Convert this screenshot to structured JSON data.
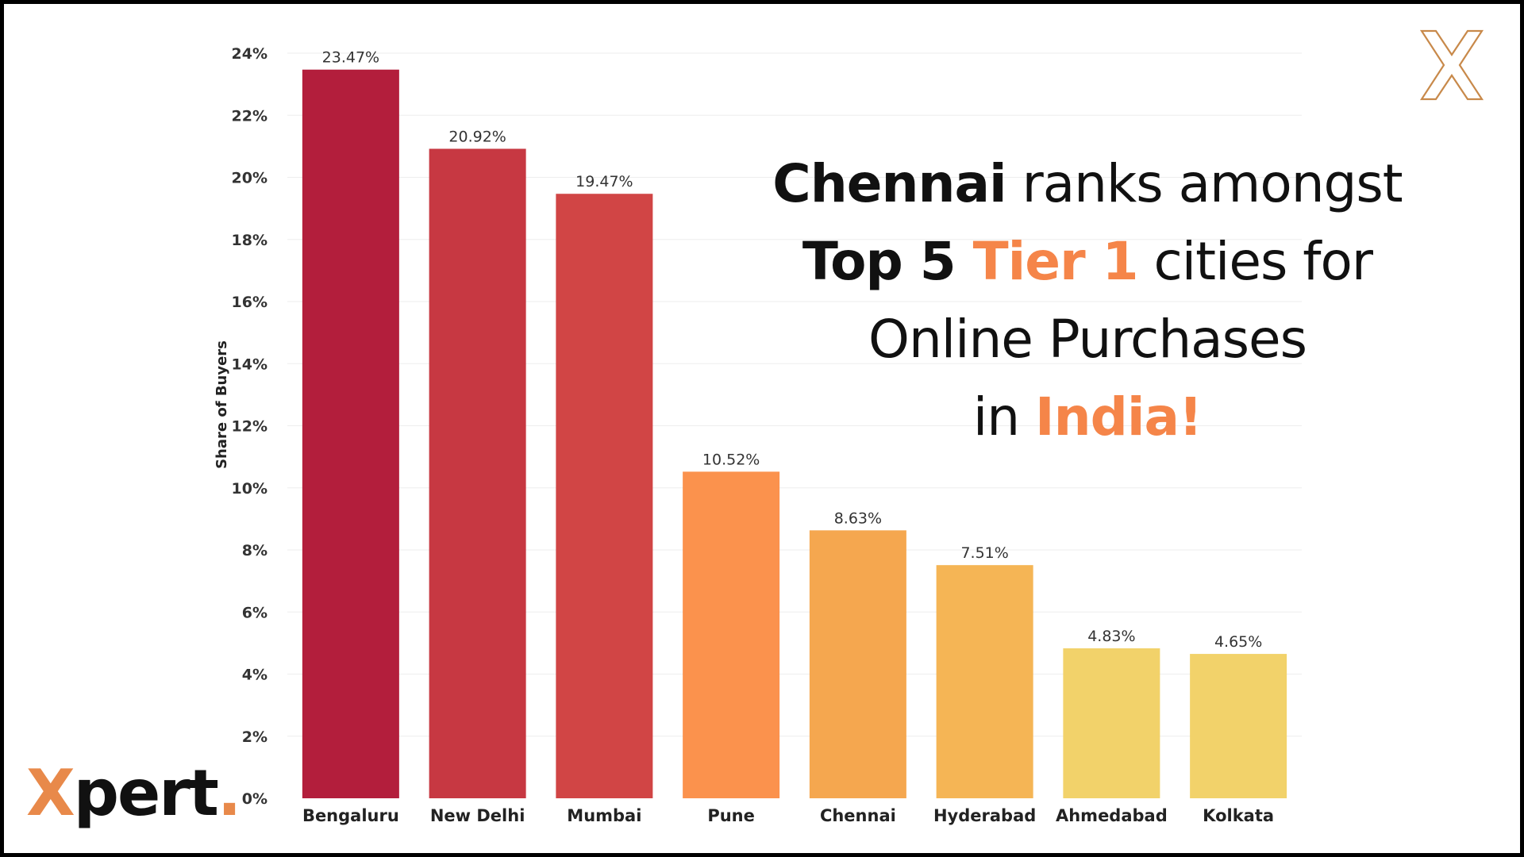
{
  "headline": {
    "line1_bold": "Chennai",
    "line1_rest": " ranks amongst",
    "line2_bold": "Top 5 ",
    "line2_accent": "Tier 1",
    "line2_rest": " cities for",
    "line3": "Online Purchases",
    "line4_plain": "in ",
    "line4_accent": "India!"
  },
  "brand": {
    "logo_x": "X",
    "logo_rest": "pert",
    "logo_dot": "."
  },
  "colors": {
    "accent": "#f58549",
    "brand_orange": "#e8894a",
    "bar_colors": [
      "#b31e3c",
      "#c73842",
      "#d14545",
      "#fb924d",
      "#f5a74f",
      "#f5b555",
      "#f2d26a",
      "#f2d26a"
    ]
  },
  "icons": {
    "corner_mark": "x-logo-outline-icon"
  },
  "chart_data": {
    "type": "bar",
    "categories": [
      "Bengaluru",
      "New Delhi",
      "Mumbai",
      "Pune",
      "Chennai",
      "Hyderabad",
      "Ahmedabad",
      "Kolkata"
    ],
    "values": [
      23.47,
      20.92,
      19.47,
      10.52,
      8.63,
      7.51,
      4.83,
      4.65
    ],
    "data_labels": [
      "23.47%",
      "20.92%",
      "19.47%",
      "10.52%",
      "8.63%",
      "7.51%",
      "4.83%",
      "4.65%"
    ],
    "ylabel": "Share of Buyers",
    "xlabel": "",
    "ylim": [
      0,
      24
    ],
    "y_ticks": [
      0,
      2,
      4,
      6,
      8,
      10,
      12,
      14,
      16,
      18,
      20,
      22,
      24
    ],
    "y_tick_labels": [
      "0%",
      "2%",
      "4%",
      "6%",
      "8%",
      "10%",
      "12%",
      "14%",
      "16%",
      "18%",
      "20%",
      "22%",
      "24%"
    ],
    "grid": true,
    "legend": "none"
  }
}
